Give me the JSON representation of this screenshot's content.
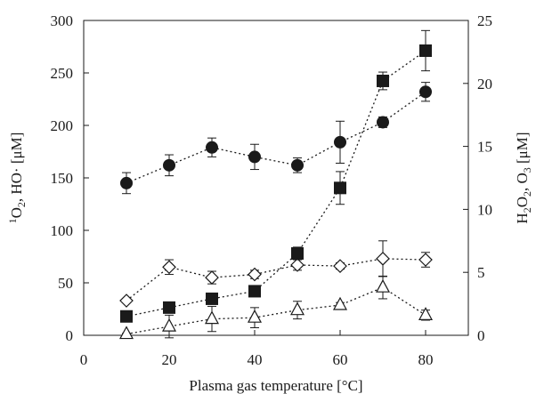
{
  "chart_data": {
    "type": "scatter",
    "xlabel": "Plasma gas temperature [°C]",
    "ylabel_left_parts": [
      "1",
      "O",
      "2",
      ", HO· [μM]"
    ],
    "ylabel_right_parts": [
      "H",
      "2",
      "O",
      "2",
      ", O",
      "3",
      " [μM]"
    ],
    "x_ticks": [
      0,
      20,
      40,
      60,
      80
    ],
    "y_left_ticks": [
      0,
      50,
      100,
      150,
      200,
      250,
      300
    ],
    "y_right_ticks": [
      0,
      5,
      10,
      15,
      20,
      25
    ],
    "xlim": [
      0,
      90
    ],
    "ylim_left": [
      0,
      300
    ],
    "ylim_right": [
      0,
      25
    ],
    "series": [
      {
        "marker": "filled-circle",
        "axis": "left",
        "x": [
          10,
          20,
          30,
          40,
          50,
          60,
          70,
          80
        ],
        "y": [
          145,
          162,
          179,
          170,
          162,
          184,
          203,
          232
        ],
        "err": [
          10,
          10,
          9,
          12,
          7,
          20,
          5,
          9
        ]
      },
      {
        "marker": "open-diamond",
        "axis": "left",
        "x": [
          10,
          20,
          30,
          40,
          50,
          60,
          70,
          80
        ],
        "y": [
          33,
          65,
          55,
          58,
          67,
          66,
          73,
          72
        ],
        "err": [
          2,
          7,
          6,
          4,
          5,
          3,
          17,
          7
        ]
      },
      {
        "marker": "filled-square",
        "axis": "right",
        "x": [
          10,
          20,
          30,
          40,
          50,
          60,
          70,
          80
        ],
        "y": [
          1.5,
          2.2,
          2.9,
          3.5,
          6.5,
          11.7,
          20.2,
          22.6
        ],
        "err": [
          0.1,
          0.2,
          0.2,
          0.2,
          0.5,
          1.3,
          0.7,
          1.6
        ]
      },
      {
        "marker": "open-triangle",
        "axis": "right",
        "x": [
          10,
          20,
          30,
          40,
          50,
          60,
          70,
          80
        ],
        "y": [
          0.1,
          0.7,
          1.3,
          1.4,
          2.0,
          2.4,
          3.8,
          1.6
        ],
        "err": [
          0.05,
          0.9,
          1.0,
          0.8,
          0.7,
          0.2,
          0.9,
          0.4
        ]
      }
    ]
  }
}
